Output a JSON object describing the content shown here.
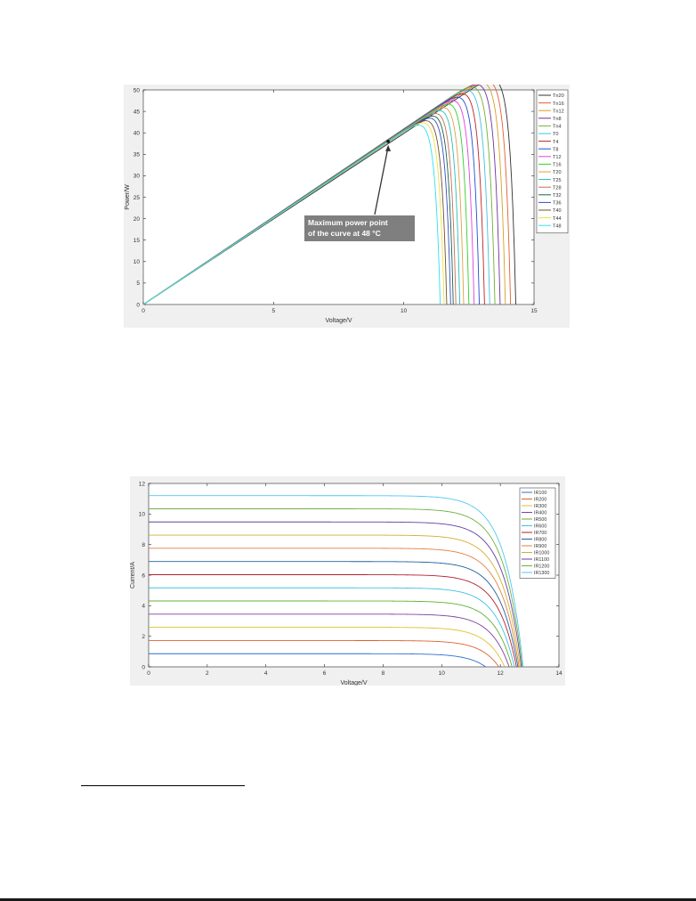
{
  "chart_data": [
    {
      "type": "line",
      "xlabel": "Voltage/V",
      "ylabel": "Power/W",
      "xlim": [
        0,
        15
      ],
      "ylim": [
        0,
        50
      ],
      "xticks": [
        "0",
        "5",
        "10",
        "15"
      ],
      "yticks": [
        "0",
        "5",
        "10",
        "15",
        "20",
        "25",
        "30",
        "35",
        "40",
        "45",
        "50"
      ],
      "grid": false,
      "legend_position": "right",
      "annotation": {
        "line1": "Maximum power point",
        "line2": "of the curve at 48 °C",
        "point": [
          9.4,
          38
        ]
      },
      "series": [
        {
          "name": "Tn20",
          "color": "#303030",
          "voc": 14.3,
          "pmax": 49.0,
          "vmp": 12.3
        },
        {
          "name": "Tn16",
          "color": "#e06030",
          "voc": 14.1,
          "pmax": 48.6,
          "vmp": 12.1
        },
        {
          "name": "Tn12",
          "color": "#d8a020",
          "voc": 13.9,
          "pmax": 48.2,
          "vmp": 11.9
        },
        {
          "name": "Tn8",
          "color": "#7030a0",
          "voc": 13.7,
          "pmax": 47.7,
          "vmp": 11.7
        },
        {
          "name": "Tn4",
          "color": "#70b030",
          "voc": 13.5,
          "pmax": 47.1,
          "vmp": 11.5
        },
        {
          "name": "T0",
          "color": "#40c0e0",
          "voc": 13.3,
          "pmax": 46.4,
          "vmp": 11.35
        },
        {
          "name": "T4",
          "color": "#c02020",
          "voc": 13.1,
          "pmax": 45.7,
          "vmp": 11.2
        },
        {
          "name": "T8",
          "color": "#1f4fd0",
          "voc": 12.9,
          "pmax": 45.0,
          "vmp": 11.05
        },
        {
          "name": "T12",
          "color": "#e040e0",
          "voc": 12.7,
          "pmax": 44.3,
          "vmp": 10.9
        },
        {
          "name": "T16",
          "color": "#30d030",
          "voc": 12.5,
          "pmax": 43.6,
          "vmp": 10.75
        },
        {
          "name": "T20",
          "color": "#e0a040",
          "voc": 12.3,
          "pmax": 42.9,
          "vmp": 10.6
        },
        {
          "name": "T25",
          "color": "#20c0c0",
          "voc": 12.15,
          "pmax": 42.2,
          "vmp": 10.45
        },
        {
          "name": "T28",
          "color": "#c07050",
          "voc": 12.0,
          "pmax": 41.5,
          "vmp": 10.3
        },
        {
          "name": "T32",
          "color": "#206050",
          "voc": 11.9,
          "pmax": 40.8,
          "vmp": 10.15
        },
        {
          "name": "T36",
          "color": "#3050c0",
          "voc": 11.8,
          "pmax": 40.2,
          "vmp": 10.0
        },
        {
          "name": "T40",
          "color": "#705030",
          "voc": 11.65,
          "pmax": 39.6,
          "vmp": 9.85
        },
        {
          "name": "T44",
          "color": "#f0e040",
          "voc": 11.55,
          "pmax": 39.0,
          "vmp": 9.7
        },
        {
          "name": "T48",
          "color": "#30e0f0",
          "voc": 11.4,
          "pmax": 38.3,
          "vmp": 9.5
        }
      ]
    },
    {
      "type": "line",
      "xlabel": "Voltage/V",
      "ylabel": "Current/A",
      "xlim": [
        0,
        14
      ],
      "ylim": [
        0,
        12
      ],
      "xticks": [
        "0",
        "2",
        "4",
        "6",
        "8",
        "10",
        "12",
        "14"
      ],
      "yticks": [
        "0",
        "2",
        "4",
        "6",
        "8",
        "10",
        "12"
      ],
      "grid": false,
      "legend_position": "top-right",
      "series": [
        {
          "name": "IR100",
          "color": "#2f6fd0",
          "isc": 0.86,
          "voc": 11.5
        },
        {
          "name": "IR200",
          "color": "#e06030",
          "isc": 1.72,
          "voc": 11.95
        },
        {
          "name": "IR300",
          "color": "#e0c030",
          "isc": 2.59,
          "voc": 12.15
        },
        {
          "name": "IR400",
          "color": "#8040a0",
          "isc": 3.45,
          "voc": 12.3
        },
        {
          "name": "IR500",
          "color": "#60b030",
          "isc": 4.31,
          "voc": 12.4
        },
        {
          "name": "IR600",
          "color": "#40c0e0",
          "isc": 5.17,
          "voc": 12.48
        },
        {
          "name": "IR700",
          "color": "#b02030",
          "isc": 6.03,
          "voc": 12.55
        },
        {
          "name": "IR800",
          "color": "#2060a0",
          "isc": 6.89,
          "voc": 12.6
        },
        {
          "name": "IR900",
          "color": "#e08040",
          "isc": 7.76,
          "voc": 12.64
        },
        {
          "name": "IR1000",
          "color": "#d0b030",
          "isc": 8.62,
          "voc": 12.68
        },
        {
          "name": "IR1100",
          "color": "#6040a0",
          "isc": 9.48,
          "voc": 12.72
        },
        {
          "name": "IR1200",
          "color": "#70b040",
          "isc": 10.34,
          "voc": 12.75
        },
        {
          "name": "IR1300",
          "color": "#50c8f0",
          "isc": 11.2,
          "voc": 12.78
        }
      ]
    }
  ]
}
